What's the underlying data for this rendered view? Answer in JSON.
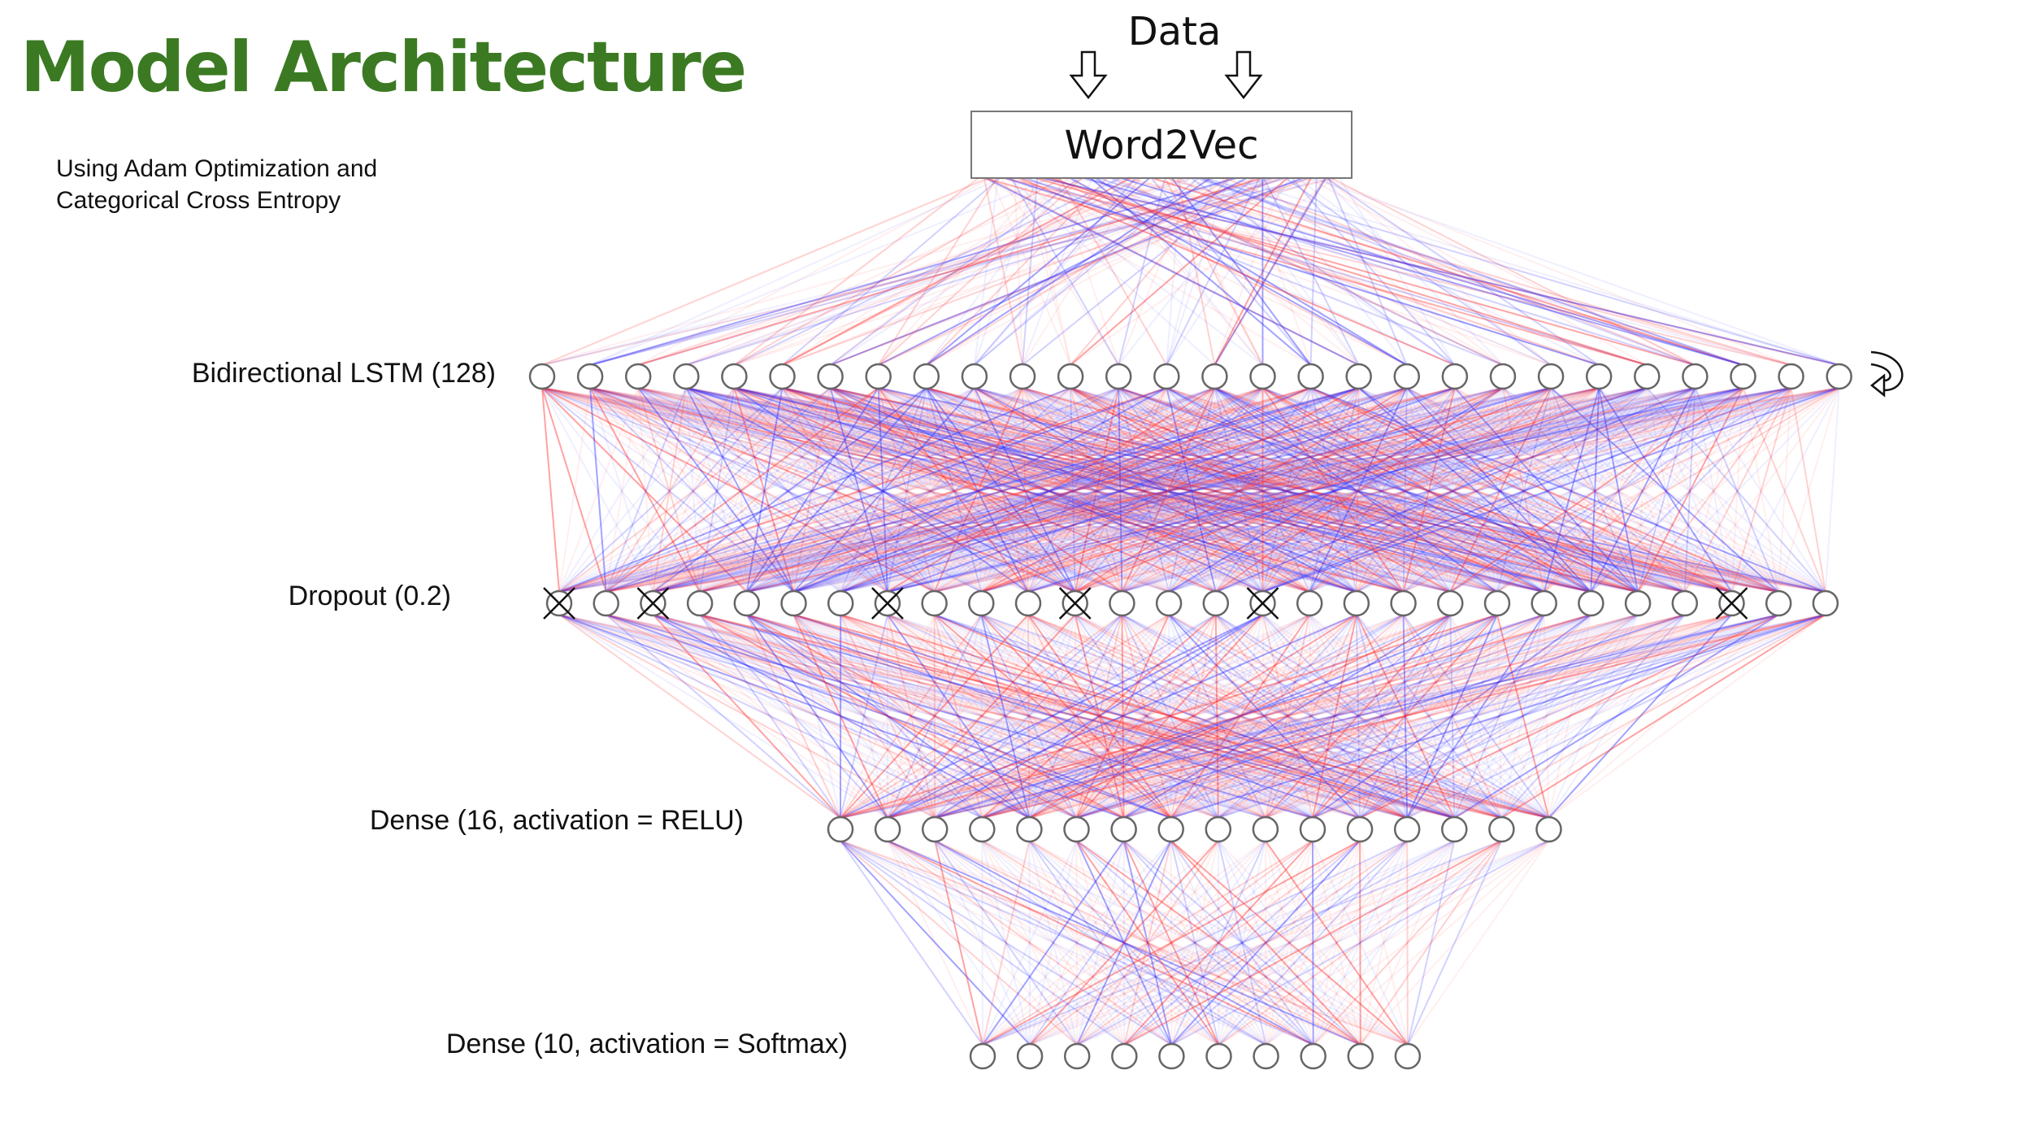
{
  "slide": {
    "title": "Model Architecture",
    "subtitle_lines": [
      "Using Adam Optimization and",
      "Categorical Cross Entropy"
    ],
    "title_color": "#3b7a22"
  },
  "diagram": {
    "input_label": "Data",
    "embedding_label": "Word2Vec",
    "layers": [
      {
        "label": "Bidirectional LSTM (128)",
        "nodes_drawn": 28,
        "recurrent": true
      },
      {
        "label": "Dropout (0.2)",
        "nodes_drawn": 28,
        "dropped_nodes": [
          0,
          2,
          7,
          11,
          15,
          25
        ]
      },
      {
        "label": "Dense (16, activation = RELU)",
        "nodes_drawn": 16
      },
      {
        "label": "Dense (10, activation = Softmax)",
        "nodes_drawn": 10
      }
    ],
    "connection_colors": {
      "positive": "#ff3333",
      "negative": "#3333ff"
    }
  }
}
